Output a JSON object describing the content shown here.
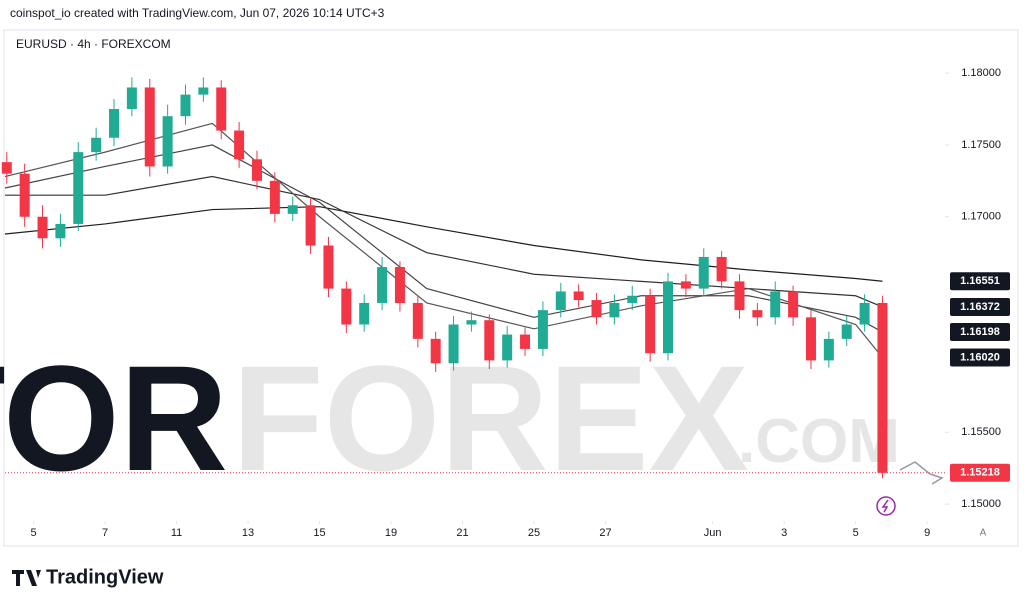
{
  "chart_data": {
    "type": "candlestick",
    "header": "coinspot_io created with TradingView.com, Jun 07, 2026 10:14 UTC+3",
    "symbol": "EURUSD · 4h · FOREXCOM",
    "watermark": [
      "TOR",
      "FOREX",
      ".COM"
    ],
    "footer_brand": "TradingView",
    "axis_button": "A",
    "up_color": "#22ab94",
    "down_color": "#f23645",
    "x": [
      -0.75,
      -0.25,
      0.25,
      0.75,
      1.25,
      1.75,
      2.25,
      2.75,
      3.25,
      3.75,
      4.25,
      4.75,
      5.25,
      5.75,
      6.25,
      6.75,
      7.25,
      7.75,
      8.25,
      8.75,
      9.25,
      9.75,
      10.25,
      10.75,
      11.25,
      11.75,
      12.25,
      12.75,
      13.25,
      13.75,
      14.25,
      14.75,
      15.25,
      15.75,
      16.25,
      16.75,
      17.25,
      17.75,
      18.25,
      18.75,
      19.25,
      19.75,
      20.25,
      20.75,
      21.25,
      21.75,
      22.25,
      22.75,
      23.25,
      23.75
    ],
    "open": [
      1.1738,
      1.173,
      1.17,
      1.1685,
      1.1695,
      1.1745,
      1.1755,
      1.1775,
      1.179,
      1.1735,
      1.177,
      1.1785,
      1.179,
      1.176,
      1.174,
      1.1725,
      1.1702,
      1.1708,
      1.168,
      1.165,
      1.1625,
      1.164,
      1.1665,
      1.164,
      1.1615,
      1.1598,
      1.1625,
      1.1628,
      1.16,
      1.1618,
      1.1608,
      1.1635,
      1.1648,
      1.1642,
      1.163,
      1.164,
      1.1645,
      1.1605,
      1.1655,
      1.165,
      1.1672,
      1.1655,
      1.1635,
      1.163,
      1.1648,
      1.163,
      1.16,
      1.1615,
      1.1625,
      1.164
    ],
    "high": [
      1.1745,
      1.1737,
      1.1708,
      1.1702,
      1.1752,
      1.1762,
      1.1782,
      1.1797,
      1.1796,
      1.1778,
      1.1792,
      1.1797,
      1.1795,
      1.1766,
      1.1746,
      1.1731,
      1.1714,
      1.1713,
      1.1686,
      1.1655,
      1.1646,
      1.1672,
      1.1669,
      1.1645,
      1.162,
      1.1631,
      1.1634,
      1.1632,
      1.1624,
      1.1623,
      1.1641,
      1.1654,
      1.1653,
      1.1647,
      1.1646,
      1.1652,
      1.165,
      1.1661,
      1.166,
      1.1678,
      1.1676,
      1.166,
      1.164,
      1.1655,
      1.1652,
      1.1635,
      1.162,
      1.1631,
      1.1646,
      1.1645
    ],
    "low": [
      1.1723,
      1.1693,
      1.1678,
      1.1679,
      1.169,
      1.1739,
      1.1749,
      1.177,
      1.1728,
      1.173,
      1.1764,
      1.178,
      1.1754,
      1.1734,
      1.1719,
      1.1696,
      1.1697,
      1.1674,
      1.1644,
      1.1619,
      1.162,
      1.1635,
      1.1634,
      1.1609,
      1.1592,
      1.1593,
      1.162,
      1.1594,
      1.1595,
      1.1603,
      1.1603,
      1.163,
      1.1637,
      1.1625,
      1.1625,
      1.1635,
      1.1599,
      1.16,
      1.1644,
      1.1645,
      1.165,
      1.1629,
      1.1624,
      1.1625,
      1.1624,
      1.1594,
      1.1595,
      1.161,
      1.162,
      1.1518
    ],
    "close": [
      1.173,
      1.17,
      1.1685,
      1.1695,
      1.1745,
      1.1755,
      1.1775,
      1.179,
      1.1735,
      1.177,
      1.1785,
      1.179,
      1.176,
      1.174,
      1.1725,
      1.1702,
      1.1708,
      1.168,
      1.165,
      1.1625,
      1.164,
      1.1665,
      1.164,
      1.1615,
      1.1598,
      1.1625,
      1.1628,
      1.16,
      1.1618,
      1.1608,
      1.1635,
      1.1648,
      1.1642,
      1.163,
      1.164,
      1.1645,
      1.1605,
      1.1655,
      1.165,
      1.1672,
      1.1655,
      1.1635,
      1.163,
      1.1648,
      1.163,
      1.16,
      1.1615,
      1.1625,
      1.164,
      1.15218
    ],
    "moving_averages": [
      {
        "color": "#1e1e1e",
        "x": [
          -0.8,
          2,
          5,
          8,
          11,
          14,
          17,
          20,
          23,
          23.75
        ],
        "values": [
          1.1688,
          1.1695,
          1.1705,
          1.1707,
          1.1693,
          1.168,
          1.167,
          1.1663,
          1.1657,
          1.16551
        ]
      },
      {
        "color": "#333333",
        "x": [
          -0.8,
          2,
          5,
          8,
          11,
          14,
          17,
          20,
          23,
          23.75
        ],
        "values": [
          1.1715,
          1.1715,
          1.1728,
          1.1712,
          1.1675,
          1.166,
          1.1655,
          1.165,
          1.1645,
          1.16372
        ]
      },
      {
        "color": "#444444",
        "x": [
          -0.8,
          2,
          5,
          8,
          11,
          14,
          17,
          20,
          23,
          23.75
        ],
        "values": [
          1.172,
          1.1735,
          1.175,
          1.171,
          1.165,
          1.163,
          1.1645,
          1.1645,
          1.163,
          1.16198
        ]
      },
      {
        "color": "#555555",
        "x": [
          -0.8,
          2,
          5,
          8,
          11,
          14,
          17,
          20,
          23,
          23.75
        ],
        "values": [
          1.1728,
          1.1745,
          1.1765,
          1.17,
          1.164,
          1.1622,
          1.1638,
          1.165,
          1.1625,
          1.1602
        ]
      }
    ],
    "last_price_labels": [
      {
        "value": 1.16551,
        "label": "1.16551",
        "color": "#131722"
      },
      {
        "value": 1.16372,
        "label": "1.16372",
        "color": "#131722"
      },
      {
        "value": 1.16198,
        "label": "1.16198",
        "color": "#131722"
      },
      {
        "value": 1.1602,
        "label": "1.16020",
        "color": "#131722"
      },
      {
        "value": 1.15218,
        "label": "1.15218",
        "color": "#f23645"
      }
    ],
    "xlim": [
      -0.8,
      25.5
    ],
    "xticks": [
      {
        "value": 0,
        "label": "5"
      },
      {
        "value": 2,
        "label": "7"
      },
      {
        "value": 4,
        "label": "11"
      },
      {
        "value": 6,
        "label": "13"
      },
      {
        "value": 8,
        "label": "15"
      },
      {
        "value": 10,
        "label": "19"
      },
      {
        "value": 12,
        "label": "21"
      },
      {
        "value": 14,
        "label": "25"
      },
      {
        "value": 16,
        "label": "27"
      },
      {
        "value": 19,
        "label": "Jun"
      },
      {
        "value": 21,
        "label": "3"
      },
      {
        "value": 23,
        "label": "5"
      },
      {
        "value": 25,
        "label": "9"
      }
    ],
    "ylim": [
      1.1491,
      1.183
    ],
    "yticks": [
      {
        "value": 1.15,
        "label": "1.15000"
      },
      {
        "value": 1.155,
        "label": "1.15500"
      },
      {
        "value": 1.17,
        "label": "1.17000"
      },
      {
        "value": 1.175,
        "label": "1.17500"
      },
      {
        "value": 1.18,
        "label": "1.18000"
      }
    ]
  }
}
